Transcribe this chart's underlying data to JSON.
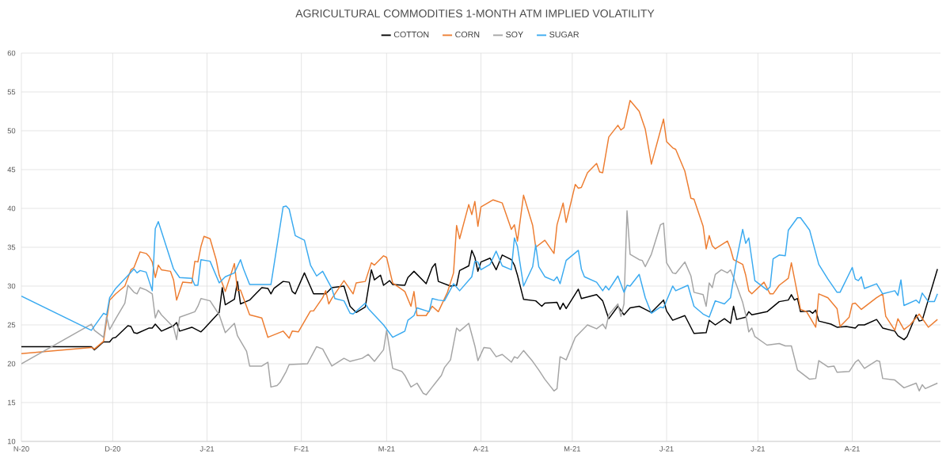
{
  "chart_data": {
    "type": "line",
    "title": "AGRICULTURAL COMMODITIES 1-MONTH ATM IMPLIED VOLATILITY",
    "xlim": [
      "2020-11-01",
      "2021-08-30"
    ],
    "ylim": [
      10,
      60
    ],
    "xticks": [
      {
        "value": "2020-11-01",
        "label": "N-20"
      },
      {
        "value": "2020-12-01",
        "label": "D-20"
      },
      {
        "value": "2021-01-01",
        "label": "J-21"
      },
      {
        "value": "2021-02-01",
        "label": "F-21"
      },
      {
        "value": "2021-03-01",
        "label": "M-21"
      },
      {
        "value": "2021-04-01",
        "label": "A-21"
      },
      {
        "value": "2021-05-01",
        "label": "M-21"
      },
      {
        "value": "2021-06-01",
        "label": "J-21"
      },
      {
        "value": "2021-07-01",
        "label": "J-21"
      },
      {
        "value": "2021-08-01",
        "label": "A-21"
      }
    ],
    "yticks": [
      10,
      15,
      20,
      25,
      30,
      35,
      40,
      45,
      50,
      55,
      60
    ],
    "grid": true,
    "legend": "top",
    "marker": "none",
    "line_style": "solid",
    "series": [
      {
        "name": "COTTON",
        "color": "#000000",
        "x": [
          "2020-11-01",
          "2020-11-24",
          "2020-11-25",
          "2020-11-28",
          "2020-11-30",
          "2020-12-01",
          "2020-12-02",
          "2020-12-06",
          "2020-12-07",
          "2020-12-08",
          "2020-12-09",
          "2020-12-13",
          "2020-12-14",
          "2020-12-15",
          "2020-12-17",
          "2020-12-21",
          "2020-12-22",
          "2020-12-23",
          "2020-12-27",
          "2020-12-30",
          "2020-12-31",
          "2021-01-05",
          "2021-01-06",
          "2021-01-07",
          "2021-01-10",
          "2021-01-11",
          "2021-01-12",
          "2021-01-15",
          "2021-01-17",
          "2021-01-19",
          "2021-01-21",
          "2021-01-22",
          "2021-01-23",
          "2021-01-26",
          "2021-01-28",
          "2021-01-29",
          "2021-01-30",
          "2021-02-02",
          "2021-02-05",
          "2021-02-09",
          "2021-02-11",
          "2021-02-15",
          "2021-02-17",
          "2021-02-19",
          "2021-02-22",
          "2021-02-24",
          "2021-02-25",
          "2021-02-27",
          "2021-02-28",
          "2021-03-02",
          "2021-03-03",
          "2021-03-07",
          "2021-03-08",
          "2021-03-10",
          "2021-03-14",
          "2021-03-16",
          "2021-03-17",
          "2021-03-18",
          "2021-03-22",
          "2021-03-24",
          "2021-03-25",
          "2021-03-28",
          "2021-03-29",
          "2021-03-30",
          "2021-03-31",
          "2021-04-01",
          "2021-04-04",
          "2021-04-06",
          "2021-04-08",
          "2021-04-11",
          "2021-04-12",
          "2021-04-13",
          "2021-04-15",
          "2021-04-19",
          "2021-04-21",
          "2021-04-22",
          "2021-04-26",
          "2021-04-27",
          "2021-04-28",
          "2021-04-29",
          "2021-05-03",
          "2021-05-04",
          "2021-05-09",
          "2021-05-11",
          "2021-05-13",
          "2021-05-16",
          "2021-05-18",
          "2021-05-20",
          "2021-05-23",
          "2021-05-25",
          "2021-05-27",
          "2021-05-31",
          "2021-06-01",
          "2021-06-03",
          "2021-06-07",
          "2021-06-10",
          "2021-06-14",
          "2021-06-15",
          "2021-06-17",
          "2021-06-20",
          "2021-06-22",
          "2021-06-23",
          "2021-06-24",
          "2021-06-27",
          "2021-06-28",
          "2021-06-29",
          "2021-07-04",
          "2021-07-08",
          "2021-07-11",
          "2021-07-12",
          "2021-07-13",
          "2021-07-14",
          "2021-07-15",
          "2021-07-18",
          "2021-07-19",
          "2021-07-20",
          "2021-07-21",
          "2021-07-25",
          "2021-07-27",
          "2021-07-30",
          "2021-08-02",
          "2021-08-03",
          "2021-08-05",
          "2021-08-09",
          "2021-08-11",
          "2021-08-15",
          "2021-08-16",
          "2021-08-18",
          "2021-08-19",
          "2021-08-22",
          "2021-08-23",
          "2021-08-24",
          "2021-08-29"
        ],
        "values": [
          22.2,
          22.2,
          21.8,
          22.8,
          22.8,
          23.3,
          23.4,
          24.9,
          24.8,
          24.0,
          23.9,
          24.6,
          24.6,
          25.1,
          24.2,
          24.9,
          25.3,
          24.2,
          24.7,
          24.1,
          24.5,
          26.6,
          29.8,
          27.6,
          28.3,
          30.6,
          27.7,
          28.2,
          29.0,
          29.8,
          29.7,
          29.0,
          29.7,
          30.6,
          30.5,
          29.3,
          29.0,
          31.7,
          29.0,
          29.0,
          29.8,
          30.0,
          27.4,
          26.6,
          27.3,
          32.1,
          30.8,
          31.4,
          30.1,
          30.7,
          30.2,
          30.1,
          31.1,
          31.9,
          30.3,
          32.4,
          32.9,
          30.6,
          30.0,
          30.1,
          32.0,
          32.6,
          34.6,
          33.7,
          31.9,
          33.1,
          33.6,
          32.1,
          34.0,
          33.4,
          32.7,
          31.4,
          28.3,
          28.1,
          27.4,
          27.8,
          27.9,
          27.0,
          27.8,
          27.1,
          29.6,
          28.4,
          28.9,
          28.1,
          25.8,
          27.4,
          26.3,
          27.2,
          27.4,
          27.0,
          26.6,
          28.2,
          26.8,
          25.6,
          26.2,
          23.9,
          24.0,
          25.6,
          25.0,
          25.8,
          25.2,
          27.4,
          25.7,
          26.0,
          26.7,
          26.3,
          26.7,
          28.0,
          28.2,
          28.9,
          28.2,
          28.4,
          26.7,
          26.8,
          26.5,
          26.9,
          25.5,
          25.1,
          24.7,
          24.8,
          24.6,
          25.0,
          25.0,
          25.7,
          24.6,
          24.2,
          23.6,
          23.1,
          23.5,
          26.3,
          25.5,
          25.6,
          32.2
        ]
      },
      {
        "name": "CORN",
        "color": "#ed7d31",
        "x": [
          "2020-11-01",
          "2020-11-24",
          "2020-11-25",
          "2020-11-28",
          "2020-11-30",
          "2020-12-02",
          "2020-12-05",
          "2020-12-07",
          "2020-12-08",
          "2020-12-10",
          "2020-12-12",
          "2020-12-13",
          "2020-12-14",
          "2020-12-15",
          "2020-12-16",
          "2020-12-17",
          "2020-12-20",
          "2020-12-21",
          "2020-12-22",
          "2020-12-24",
          "2020-12-27",
          "2020-12-28",
          "2020-12-29",
          "2020-12-30",
          "2020-12-31",
          "2021-01-02",
          "2021-01-04",
          "2021-01-05",
          "2021-01-07",
          "2021-01-10",
          "2021-01-11",
          "2021-01-12",
          "2021-01-15",
          "2021-01-19",
          "2021-01-21",
          "2021-01-26",
          "2021-01-28",
          "2021-01-29",
          "2021-01-31",
          "2021-02-04",
          "2021-02-05",
          "2021-02-08",
          "2021-02-09",
          "2021-02-10",
          "2021-02-11",
          "2021-02-15",
          "2021-02-18",
          "2021-02-19",
          "2021-02-22",
          "2021-02-24",
          "2021-02-25",
          "2021-02-28",
          "2021-03-01",
          "2021-03-03",
          "2021-03-07",
          "2021-03-09",
          "2021-03-10",
          "2021-03-11",
          "2021-03-14",
          "2021-03-16",
          "2021-03-18",
          "2021-03-21",
          "2021-03-23",
          "2021-03-24",
          "2021-03-25",
          "2021-03-28",
          "2021-03-29",
          "2021-03-30",
          "2021-03-31",
          "2021-04-01",
          "2021-04-05",
          "2021-04-08",
          "2021-04-11",
          "2021-04-12",
          "2021-04-13",
          "2021-04-15",
          "2021-04-18",
          "2021-04-19",
          "2021-04-22",
          "2021-04-25",
          "2021-04-26",
          "2021-04-28",
          "2021-04-29",
          "2021-05-02",
          "2021-05-03",
          "2021-05-04",
          "2021-05-06",
          "2021-05-09",
          "2021-05-10",
          "2021-05-11",
          "2021-05-13",
          "2021-05-16",
          "2021-05-17",
          "2021-05-18",
          "2021-05-20",
          "2021-05-23",
          "2021-05-25",
          "2021-05-27",
          "2021-05-31",
          "2021-06-01",
          "2021-06-03",
          "2021-06-04",
          "2021-06-07",
          "2021-06-09",
          "2021-06-10",
          "2021-06-13",
          "2021-06-14",
          "2021-06-15",
          "2021-06-16",
          "2021-06-17",
          "2021-06-21",
          "2021-06-22",
          "2021-06-23",
          "2021-06-26",
          "2021-06-27",
          "2021-06-28",
          "2021-06-29",
          "2021-07-03",
          "2021-07-05",
          "2021-07-06",
          "2021-07-08",
          "2021-07-11",
          "2021-07-12",
          "2021-07-15",
          "2021-07-17",
          "2021-07-20",
          "2021-07-21",
          "2021-07-24",
          "2021-07-27",
          "2021-07-28",
          "2021-07-31",
          "2021-08-01",
          "2021-08-02",
          "2021-08-04",
          "2021-08-09",
          "2021-08-11",
          "2021-08-12",
          "2021-08-15",
          "2021-08-16",
          "2021-08-18",
          "2021-08-20",
          "2021-08-23",
          "2021-08-26",
          "2021-08-29"
        ],
        "values": [
          21.3,
          22.1,
          21.9,
          22.9,
          28.2,
          29.0,
          30.0,
          32.1,
          32.4,
          34.4,
          34.2,
          33.8,
          33.1,
          31.1,
          32.7,
          32.1,
          31.9,
          30.8,
          28.2,
          30.5,
          30.4,
          33.2,
          33.1,
          35.1,
          36.4,
          36.1,
          33.4,
          31.4,
          29.3,
          32.9,
          29.4,
          29.5,
          26.3,
          25.9,
          23.4,
          24.2,
          23.3,
          24.2,
          24.1,
          26.8,
          26.8,
          28.5,
          29.4,
          27.7,
          28.4,
          30.7,
          29.0,
          30.4,
          30.6,
          33.0,
          32.7,
          33.9,
          33.7,
          30.4,
          29.3,
          27.4,
          29.3,
          26.2,
          26.2,
          27.4,
          26.7,
          29.2,
          31.7,
          37.8,
          36.1,
          40.5,
          39.2,
          40.9,
          37.7,
          40.2,
          41.1,
          40.7,
          37.3,
          37.9,
          35.8,
          41.7,
          37.8,
          35.0,
          35.9,
          34.2,
          37.9,
          40.7,
          38.2,
          43.1,
          42.6,
          42.7,
          44.6,
          45.8,
          44.7,
          44.6,
          49.2,
          50.7,
          50.1,
          50.4,
          53.9,
          52.5,
          50.2,
          45.7,
          51.5,
          48.6,
          47.8,
          47.6,
          44.8,
          41.3,
          41.2,
          37.7,
          34.8,
          36.5,
          35.2,
          34.8,
          35.8,
          34.8,
          33.4,
          32.8,
          31.4,
          29.4,
          29.0,
          30.5,
          29.0,
          29.0,
          30.1,
          31.0,
          33.0,
          27.0,
          26.7,
          24.7,
          29.0,
          28.5,
          27.1,
          24.8,
          26.0,
          27.7,
          27.8,
          27.0,
          28.5,
          29.0,
          26.1,
          24.3,
          25.8,
          24.4,
          25.0,
          26.4,
          24.7,
          25.7
        ]
      },
      {
        "name": "SOY",
        "color": "#a5a5a5",
        "x": [
          "2020-11-01",
          "2020-11-24",
          "2020-11-25",
          "2020-11-28",
          "2020-11-29",
          "2020-11-30",
          "2020-12-02",
          "2020-12-05",
          "2020-12-06",
          "2020-12-08",
          "2020-12-09",
          "2020-12-10",
          "2020-12-12",
          "2020-12-14",
          "2020-12-15",
          "2020-12-16",
          "2020-12-17",
          "2020-12-21",
          "2020-12-22",
          "2020-12-23",
          "2020-12-28",
          "2020-12-29",
          "2020-12-30",
          "2021-01-02",
          "2021-01-05",
          "2021-01-07",
          "2021-01-10",
          "2021-01-11",
          "2021-01-14",
          "2021-01-15",
          "2021-01-19",
          "2021-01-21",
          "2021-01-22",
          "2021-01-24",
          "2021-01-25",
          "2021-01-27",
          "2021-01-28",
          "2021-02-03",
          "2021-02-06",
          "2021-02-08",
          "2021-02-11",
          "2021-02-15",
          "2021-02-17",
          "2021-02-21",
          "2021-02-23",
          "2021-02-25",
          "2021-02-28",
          "2021-03-01",
          "2021-03-03",
          "2021-03-06",
          "2021-03-07",
          "2021-03-09",
          "2021-03-11",
          "2021-03-13",
          "2021-03-14",
          "2021-03-16",
          "2021-03-17",
          "2021-03-19",
          "2021-03-20",
          "2021-03-22",
          "2021-03-24",
          "2021-03-25",
          "2021-03-28",
          "2021-03-30",
          "2021-03-31",
          "2021-04-02",
          "2021-04-04",
          "2021-04-06",
          "2021-04-08",
          "2021-04-11",
          "2021-04-12",
          "2021-04-13",
          "2021-04-15",
          "2021-04-18",
          "2021-04-20",
          "2021-04-22",
          "2021-04-24",
          "2021-04-25",
          "2021-04-26",
          "2021-04-27",
          "2021-04-29",
          "2021-05-02",
          "2021-05-03",
          "2021-05-06",
          "2021-05-09",
          "2021-05-11",
          "2021-05-12",
          "2021-05-13",
          "2021-05-16",
          "2021-05-17",
          "2021-05-18",
          "2021-05-19",
          "2021-05-20",
          "2021-05-23",
          "2021-05-24",
          "2021-05-25",
          "2021-05-27",
          "2021-05-30",
          "2021-05-31",
          "2021-06-01",
          "2021-06-03",
          "2021-06-04",
          "2021-06-07",
          "2021-06-09",
          "2021-06-10",
          "2021-06-13",
          "2021-06-14",
          "2021-06-15",
          "2021-06-16",
          "2021-06-17",
          "2021-06-19",
          "2021-06-21",
          "2021-06-22",
          "2021-06-24",
          "2021-06-26",
          "2021-06-27",
          "2021-06-28",
          "2021-06-29",
          "2021-06-30",
          "2021-07-04",
          "2021-07-08",
          "2021-07-10",
          "2021-07-12",
          "2021-07-14",
          "2021-07-18",
          "2021-07-20",
          "2021-07-21",
          "2021-07-24",
          "2021-07-26",
          "2021-07-27",
          "2021-07-31",
          "2021-08-02",
          "2021-08-03",
          "2021-08-05",
          "2021-08-09",
          "2021-08-10",
          "2021-08-11",
          "2021-08-15",
          "2021-08-18",
          "2021-08-22",
          "2021-08-23",
          "2021-08-24",
          "2021-08-25",
          "2021-08-29"
        ],
        "values": [
          20.0,
          25.1,
          24.3,
          23.4,
          26.1,
          24.4,
          25.8,
          27.8,
          30.1,
          29.2,
          29.0,
          29.8,
          29.5,
          29.0,
          25.9,
          26.9,
          26.3,
          24.7,
          23.1,
          26.0,
          26.7,
          27.4,
          28.4,
          28.1,
          26.3,
          24.0,
          25.2,
          23.6,
          21.6,
          19.7,
          19.7,
          20.2,
          17.0,
          17.2,
          17.6,
          19.0,
          19.9,
          20.0,
          22.2,
          21.9,
          19.7,
          20.7,
          20.3,
          20.7,
          21.2,
          20.3,
          21.8,
          24.3,
          19.4,
          19.0,
          18.5,
          17.0,
          17.5,
          16.2,
          16.0,
          17.0,
          17.5,
          18.5,
          19.5,
          20.5,
          24.6,
          24.2,
          25.2,
          22.3,
          20.4,
          22.1,
          22.0,
          20.9,
          21.2,
          20.2,
          20.9,
          20.7,
          21.7,
          20.3,
          19.2,
          18.0,
          17.0,
          16.5,
          16.8,
          20.9,
          20.5,
          23.4,
          23.8,
          25.0,
          24.5,
          25.1,
          24.5,
          26.3,
          27.7,
          26.1,
          27.7,
          39.7,
          34.1,
          33.4,
          33.3,
          32.5,
          34.1,
          37.9,
          38.1,
          33.0,
          31.7,
          31.6,
          33.1,
          31.3,
          29.2,
          28.9,
          27.4,
          30.4,
          29.8,
          31.5,
          32.1,
          31.7,
          32.1,
          30.1,
          27.9,
          26.3,
          24.1,
          24.6,
          23.5,
          22.4,
          22.6,
          22.3,
          22.3,
          19.2,
          18.0,
          18.1,
          20.4,
          19.6,
          19.7,
          18.9,
          19.0,
          20.2,
          20.5,
          19.4,
          20.4,
          20.3,
          18.1,
          17.9,
          16.9,
          17.5,
          16.5,
          17.3,
          16.8,
          17.5
        ]
      },
      {
        "name": "SUGAR",
        "color": "#3aaaf0",
        "x": [
          "2020-11-01",
          "2020-11-24",
          "2020-11-28",
          "2020-11-29",
          "2020-11-30",
          "2020-12-02",
          "2020-12-08",
          "2020-12-09",
          "2020-12-10",
          "2020-12-12",
          "2020-12-14",
          "2020-12-15",
          "2020-12-16",
          "2020-12-21",
          "2020-12-23",
          "2020-12-27",
          "2020-12-28",
          "2020-12-29",
          "2020-12-30",
          "2021-01-02",
          "2021-01-05",
          "2021-01-07",
          "2021-01-10",
          "2021-01-12",
          "2021-01-13",
          "2021-01-15",
          "2021-01-22",
          "2021-01-26",
          "2021-01-27",
          "2021-01-28",
          "2021-01-30",
          "2021-02-02",
          "2021-02-04",
          "2021-02-06",
          "2021-02-08",
          "2021-02-11",
          "2021-02-12",
          "2021-02-15",
          "2021-02-17",
          "2021-02-18",
          "2021-02-22",
          "2021-02-23",
          "2021-02-28",
          "2021-03-03",
          "2021-03-07",
          "2021-03-08",
          "2021-03-10",
          "2021-03-11",
          "2021-03-15",
          "2021-03-16",
          "2021-03-18",
          "2021-03-20",
          "2021-03-23",
          "2021-03-25",
          "2021-03-29",
          "2021-03-30",
          "2021-03-31",
          "2021-04-01",
          "2021-04-04",
          "2021-04-06",
          "2021-04-08",
          "2021-04-11",
          "2021-04-12",
          "2021-04-13",
          "2021-04-15",
          "2021-04-18",
          "2021-04-19",
          "2021-04-20",
          "2021-04-22",
          "2021-04-25",
          "2021-04-26",
          "2021-04-27",
          "2021-04-29",
          "2021-05-03",
          "2021-05-04",
          "2021-05-05",
          "2021-05-09",
          "2021-05-11",
          "2021-05-12",
          "2021-05-13",
          "2021-05-16",
          "2021-05-18",
          "2021-05-19",
          "2021-05-20",
          "2021-05-23",
          "2021-05-25",
          "2021-05-27",
          "2021-05-30",
          "2021-05-31",
          "2021-06-03",
          "2021-06-04",
          "2021-06-08",
          "2021-06-10",
          "2021-06-13",
          "2021-06-15",
          "2021-06-17",
          "2021-06-20",
          "2021-06-22",
          "2021-06-24",
          "2021-06-26",
          "2021-06-27",
          "2021-06-28",
          "2021-06-30",
          "2021-07-04",
          "2021-07-05",
          "2021-07-06",
          "2021-07-08",
          "2021-07-10",
          "2021-07-11",
          "2021-07-14",
          "2021-07-15",
          "2021-07-18",
          "2021-07-21",
          "2021-07-24",
          "2021-07-27",
          "2021-07-28",
          "2021-08-01",
          "2021-08-02",
          "2021-08-03",
          "2021-08-04",
          "2021-08-05",
          "2021-08-09",
          "2021-08-11",
          "2021-08-15",
          "2021-08-16",
          "2021-08-17",
          "2021-08-18",
          "2021-08-22",
          "2021-08-23",
          "2021-08-24",
          "2021-08-26",
          "2021-08-28",
          "2021-08-29"
        ],
        "values": [
          28.7,
          24.3,
          26.5,
          26.3,
          28.5,
          29.7,
          32.2,
          31.7,
          32.0,
          31.8,
          29.4,
          37.4,
          38.3,
          32.2,
          31.1,
          31.0,
          30.1,
          30.1,
          33.4,
          33.2,
          30.4,
          31.2,
          31.7,
          33.4,
          32.2,
          30.2,
          30.2,
          40.2,
          40.3,
          39.9,
          36.5,
          35.9,
          32.7,
          31.3,
          31.9,
          29.7,
          28.4,
          28.1,
          26.5,
          26.4,
          27.8,
          27.1,
          25.0,
          23.4,
          24.2,
          25.6,
          26.2,
          27.2,
          26.7,
          28.4,
          28.2,
          28.1,
          30.3,
          29.4,
          31.2,
          33.2,
          33.1,
          32.1,
          32.8,
          34.5,
          32.6,
          32.1,
          36.2,
          35.1,
          30.0,
          32.5,
          35.3,
          32.5,
          31.2,
          30.7,
          31.2,
          30.3,
          33.3,
          34.6,
          32.2,
          31.2,
          30.5,
          29.4,
          30.0,
          29.5,
          31.3,
          29.2,
          30.1,
          30.0,
          31.5,
          28.5,
          26.5,
          27.3,
          27.2,
          30.0,
          29.4,
          30.1,
          27.4,
          26.4,
          26.0,
          28.1,
          27.7,
          28.5,
          33.4,
          37.3,
          35.5,
          36.2,
          30.7,
          29.5,
          29.9,
          33.5,
          34.0,
          33.9,
          37.2,
          38.8,
          38.8,
          37.2,
          32.8,
          30.9,
          29.2,
          29.2,
          32.4,
          30.9,
          30.7,
          31.2,
          29.7,
          30.3,
          29.0,
          29.4,
          28.8,
          30.8,
          27.5,
          28.2,
          27.8,
          29.1,
          28.0,
          28.0,
          29.0
        ]
      }
    ]
  }
}
